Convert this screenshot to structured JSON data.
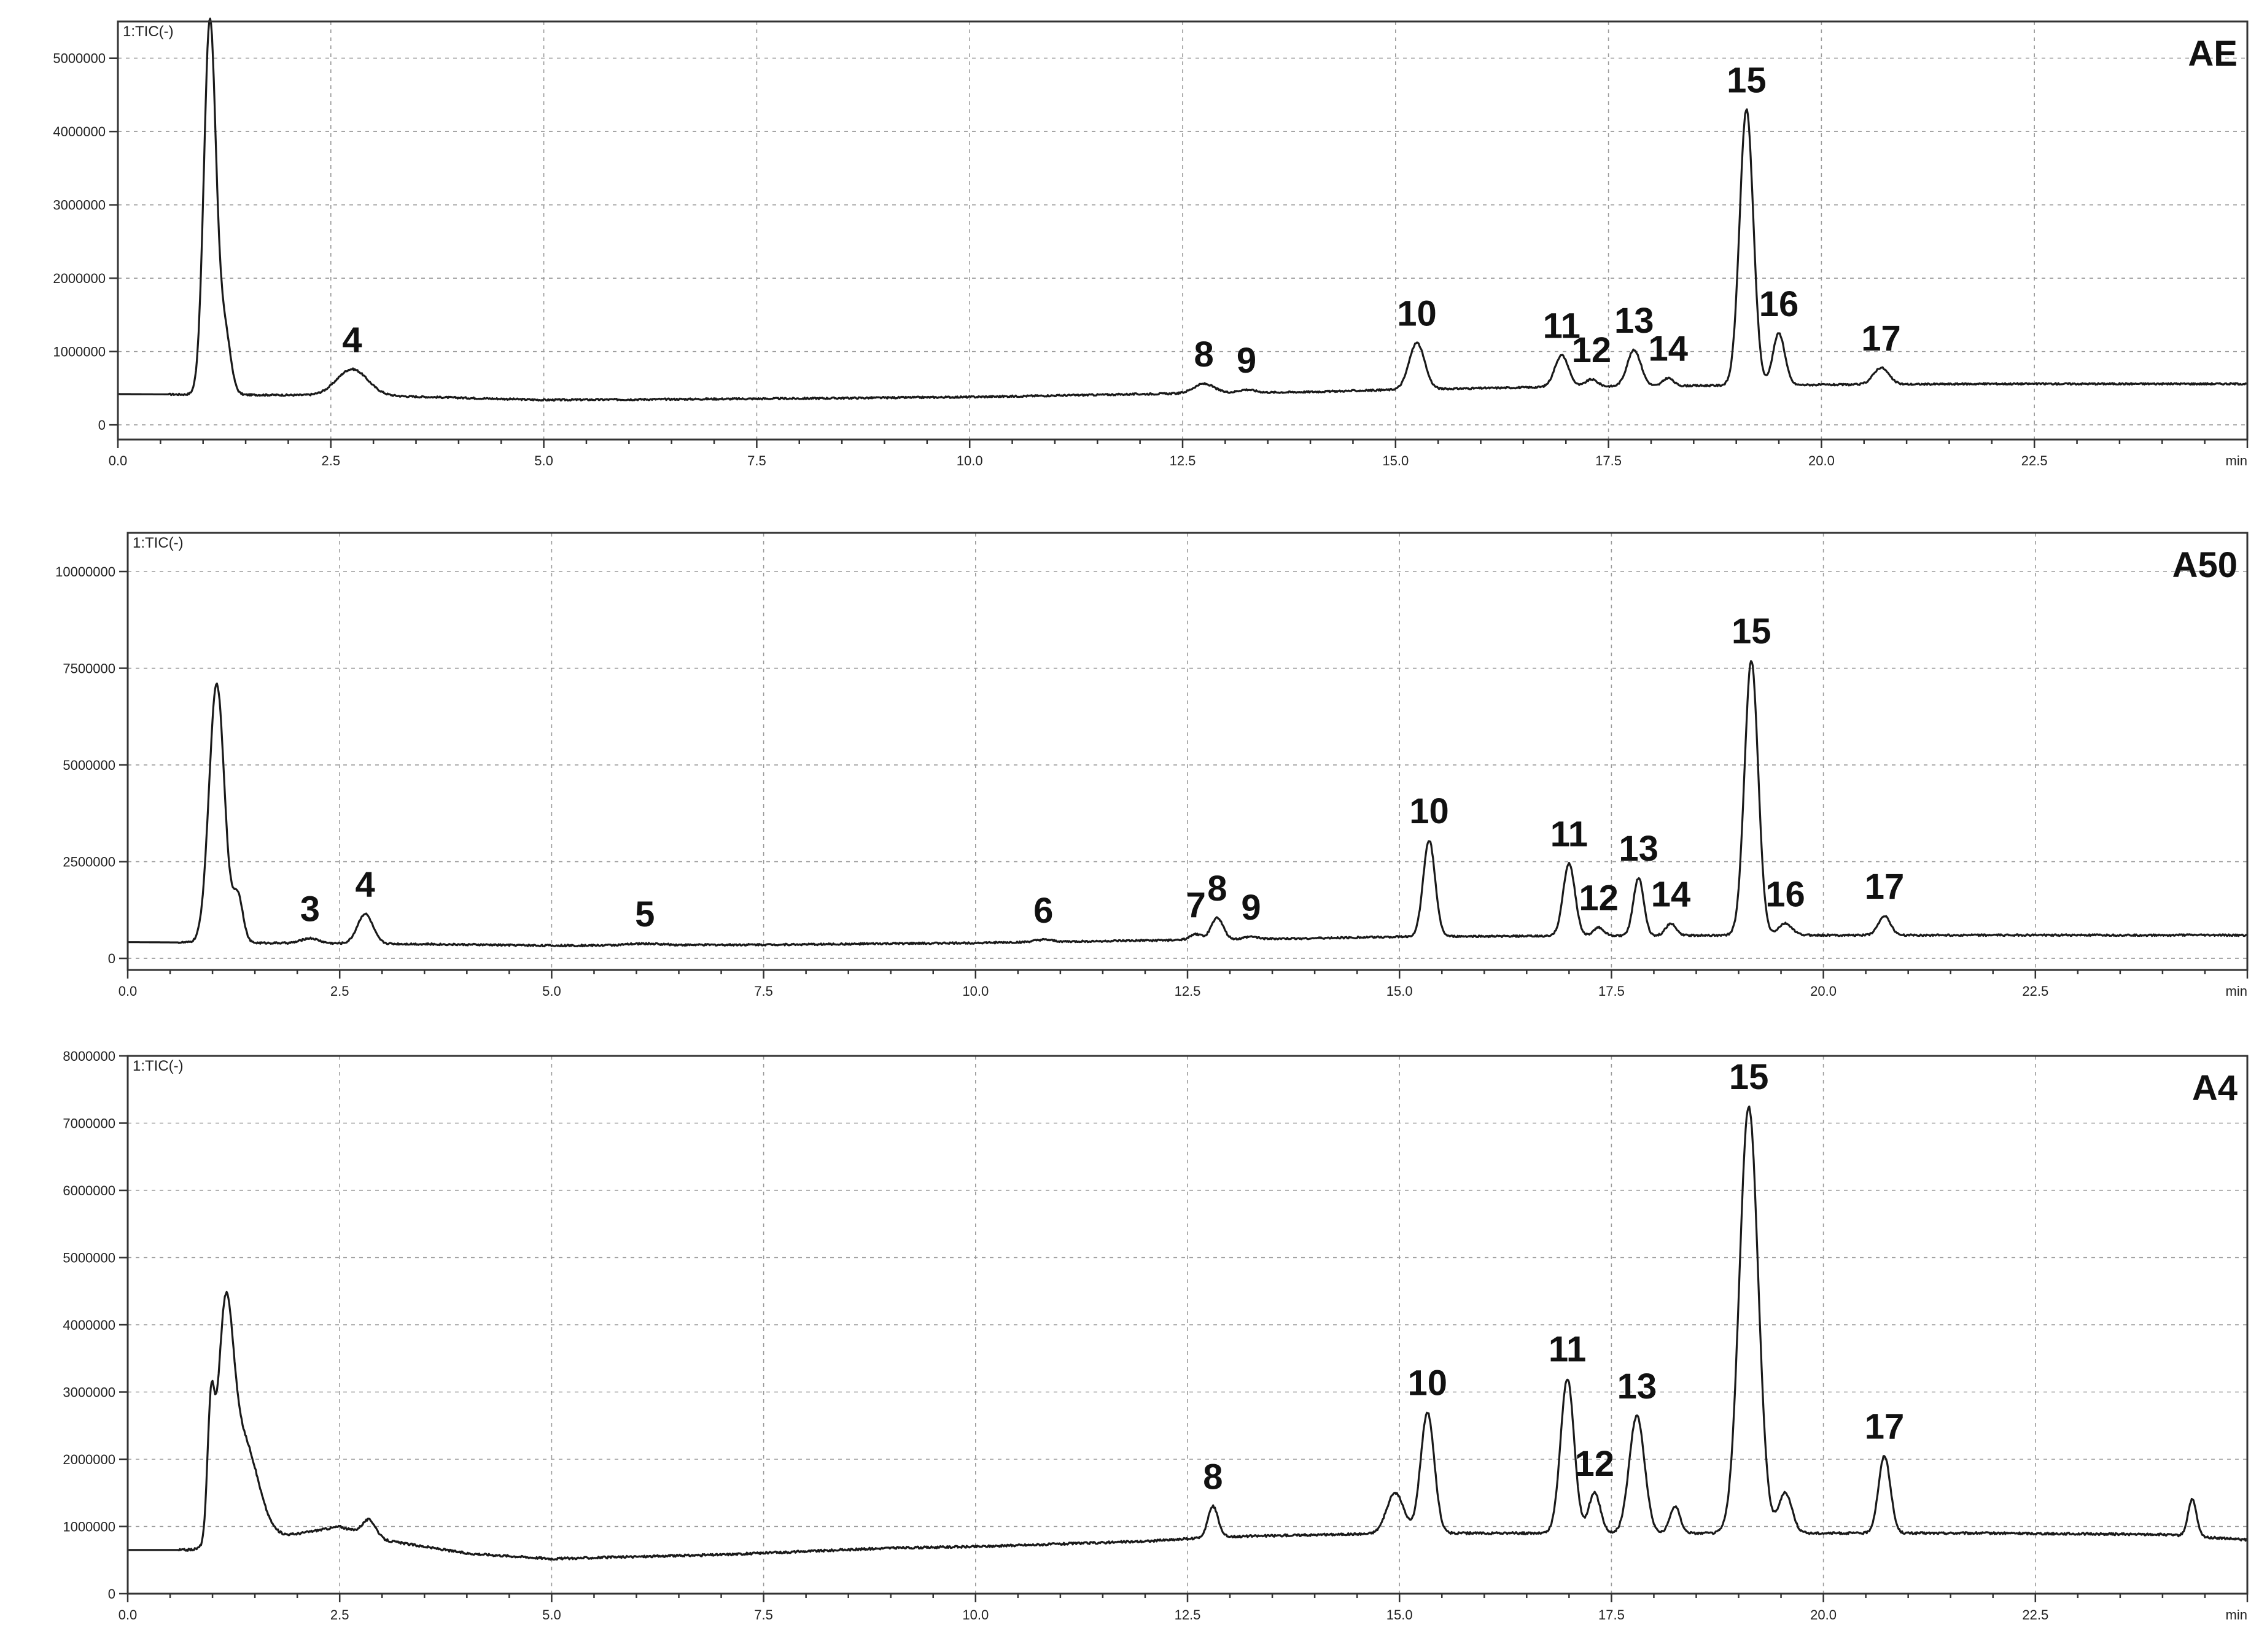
{
  "chart_data": [
    {
      "type": "line",
      "panel": "AE",
      "trace_label": "1:TIC(-)",
      "xunit": "min",
      "xlim": [
        0,
        25
      ],
      "ylim": [
        -200000,
        5500000
      ],
      "xticks": [
        "0.0",
        "2.5",
        "5.0",
        "7.5",
        "10.0",
        "12.5",
        "15.0",
        "17.5",
        "20.0",
        "22.5"
      ],
      "xtick_values": [
        0,
        2.5,
        5,
        7.5,
        10,
        12.5,
        15,
        17.5,
        20,
        22.5
      ],
      "yticks": [
        "0",
        "1000000",
        "2000000",
        "3000000",
        "4000000",
        "5000000"
      ],
      "ytick_values": [
        0,
        1000000,
        2000000,
        3000000,
        4000000,
        5000000
      ],
      "baseline": [
        [
          0,
          420000
        ],
        [
          3,
          400000
        ],
        [
          5,
          340000
        ],
        [
          8,
          360000
        ],
        [
          10,
          380000
        ],
        [
          12,
          420000
        ],
        [
          14,
          450000
        ],
        [
          15,
          480000
        ],
        [
          16,
          500000
        ],
        [
          17,
          520000
        ],
        [
          19,
          540000
        ],
        [
          22,
          560000
        ],
        [
          25,
          560000
        ]
      ],
      "peaks": [
        {
          "x": 1.08,
          "y": 5500000,
          "w": 0.07
        },
        {
          "x": 1.25,
          "y": 1300000,
          "w": 0.07
        },
        {
          "label": "4",
          "x": 2.75,
          "y": 760000,
          "w": 0.18
        },
        {
          "label": "8",
          "x": 12.75,
          "y": 560000,
          "w": 0.12
        },
        {
          "label": "9",
          "x": 13.25,
          "y": 480000,
          "w": 0.1
        },
        {
          "label": "10",
          "x": 15.25,
          "y": 1120000,
          "w": 0.09
        },
        {
          "label": "11",
          "x": 16.95,
          "y": 950000,
          "w": 0.08
        },
        {
          "label": "12",
          "x": 17.3,
          "y": 620000,
          "w": 0.07
        },
        {
          "label": "13",
          "x": 17.8,
          "y": 1020000,
          "w": 0.08
        },
        {
          "label": "14",
          "x": 18.2,
          "y": 640000,
          "w": 0.06
        },
        {
          "label": "15",
          "x": 19.12,
          "y": 4300000,
          "w": 0.08
        },
        {
          "label": "16",
          "x": 19.5,
          "y": 1250000,
          "w": 0.07
        },
        {
          "label": "17",
          "x": 20.7,
          "y": 780000,
          "w": 0.09
        }
      ]
    },
    {
      "type": "line",
      "panel": "A50",
      "trace_label": "1:TIC(-)",
      "xunit": "min",
      "xlim": [
        0,
        25
      ],
      "ylim": [
        -300000,
        11000000
      ],
      "xticks": [
        "0.0",
        "2.5",
        "5.0",
        "7.5",
        "10.0",
        "12.5",
        "15.0",
        "17.5",
        "20.0",
        "22.5"
      ],
      "xtick_values": [
        0,
        2.5,
        5,
        7.5,
        10,
        12.5,
        15,
        17.5,
        20,
        22.5
      ],
      "yticks": [
        "0",
        "2500000",
        "5000000",
        "7500000",
        "10000000"
      ],
      "ytick_values": [
        0,
        2500000,
        5000000,
        7500000,
        10000000
      ],
      "baseline": [
        [
          0,
          420000
        ],
        [
          3,
          380000
        ],
        [
          5,
          330000
        ],
        [
          8,
          360000
        ],
        [
          10,
          400000
        ],
        [
          12,
          460000
        ],
        [
          14,
          520000
        ],
        [
          15,
          560000
        ],
        [
          17,
          580000
        ],
        [
          19,
          600000
        ],
        [
          22,
          600000
        ],
        [
          25,
          600000
        ]
      ],
      "peaks": [
        {
          "x": 1.05,
          "y": 7100000,
          "w": 0.09
        },
        {
          "x": 1.3,
          "y": 1600000,
          "w": 0.06
        },
        {
          "label": "3",
          "x": 2.15,
          "y": 520000,
          "w": 0.1
        },
        {
          "label": "4",
          "x": 2.8,
          "y": 1150000,
          "w": 0.09
        },
        {
          "label": "5",
          "x": 6.1,
          "y": 380000,
          "w": 0.2
        },
        {
          "label": "6",
          "x": 10.8,
          "y": 480000,
          "w": 0.1
        },
        {
          "label": "7",
          "x": 12.6,
          "y": 620000,
          "w": 0.07
        },
        {
          "label": "8",
          "x": 12.85,
          "y": 1050000,
          "w": 0.07
        },
        {
          "label": "9",
          "x": 13.25,
          "y": 560000,
          "w": 0.08
        },
        {
          "label": "10",
          "x": 15.35,
          "y": 3050000,
          "w": 0.07
        },
        {
          "label": "11",
          "x": 17.0,
          "y": 2450000,
          "w": 0.07
        },
        {
          "label": "12",
          "x": 17.35,
          "y": 800000,
          "w": 0.06
        },
        {
          "label": "13",
          "x": 17.82,
          "y": 2080000,
          "w": 0.06
        },
        {
          "label": "14",
          "x": 18.2,
          "y": 900000,
          "w": 0.06
        },
        {
          "label": "15",
          "x": 19.15,
          "y": 7700000,
          "w": 0.08
        },
        {
          "label": "16",
          "x": 19.55,
          "y": 900000,
          "w": 0.08
        },
        {
          "label": "17",
          "x": 20.72,
          "y": 1100000,
          "w": 0.07
        }
      ]
    },
    {
      "type": "line",
      "panel": "A4",
      "trace_label": "1:TIC(-)",
      "xunit": "min",
      "xlim": [
        0,
        25
      ],
      "ylim": [
        0,
        8000000
      ],
      "xticks": [
        "0.0",
        "2.5",
        "5.0",
        "7.5",
        "10.0",
        "12.5",
        "15.0",
        "17.5",
        "20.0",
        "22.5"
      ],
      "xtick_values": [
        0,
        2.5,
        5,
        7.5,
        10,
        12.5,
        15,
        17.5,
        20,
        22.5
      ],
      "yticks": [
        "0",
        "1000000",
        "2000000",
        "3000000",
        "4000000",
        "5000000",
        "6000000",
        "7000000",
        "8000000"
      ],
      "ytick_values": [
        0,
        1000000,
        2000000,
        3000000,
        4000000,
        5000000,
        6000000,
        7000000,
        8000000
      ],
      "baseline": [
        [
          0,
          650000
        ],
        [
          0.9,
          650000
        ],
        [
          2.5,
          1000000
        ],
        [
          3,
          800000
        ],
        [
          4,
          600000
        ],
        [
          5,
          520000
        ],
        [
          7,
          580000
        ],
        [
          9,
          680000
        ],
        [
          10,
          700000
        ],
        [
          12,
          780000
        ],
        [
          13,
          850000
        ],
        [
          15,
          900000
        ],
        [
          17,
          900000
        ],
        [
          19,
          900000
        ],
        [
          22,
          900000
        ],
        [
          24,
          880000
        ],
        [
          25,
          800000
        ]
      ],
      "peaks": [
        {
          "x": 0.98,
          "y": 2400000,
          "w": 0.04
        },
        {
          "x": 1.15,
          "y": 3600000,
          "w": 0.09
        },
        {
          "x": 1.35,
          "y": 2300000,
          "w": 0.18
        },
        {
          "x": 2.85,
          "y": 1100000,
          "w": 0.08
        },
        {
          "label": "8",
          "x": 12.8,
          "y": 1300000,
          "w": 0.06
        },
        {
          "x": 14.95,
          "y": 1500000,
          "w": 0.1
        },
        {
          "label": "10",
          "x": 15.33,
          "y": 2700000,
          "w": 0.08
        },
        {
          "label": "11",
          "x": 16.98,
          "y": 3200000,
          "w": 0.08
        },
        {
          "label": "12",
          "x": 17.3,
          "y": 1500000,
          "w": 0.07
        },
        {
          "label": "13",
          "x": 17.8,
          "y": 2650000,
          "w": 0.09
        },
        {
          "x": 18.25,
          "y": 1300000,
          "w": 0.06
        },
        {
          "label": "15",
          "x": 19.12,
          "y": 7250000,
          "w": 0.11
        },
        {
          "x": 19.55,
          "y": 1500000,
          "w": 0.08
        },
        {
          "label": "17",
          "x": 20.72,
          "y": 2050000,
          "w": 0.07
        },
        {
          "x": 24.35,
          "y": 1400000,
          "w": 0.05
        }
      ]
    }
  ]
}
